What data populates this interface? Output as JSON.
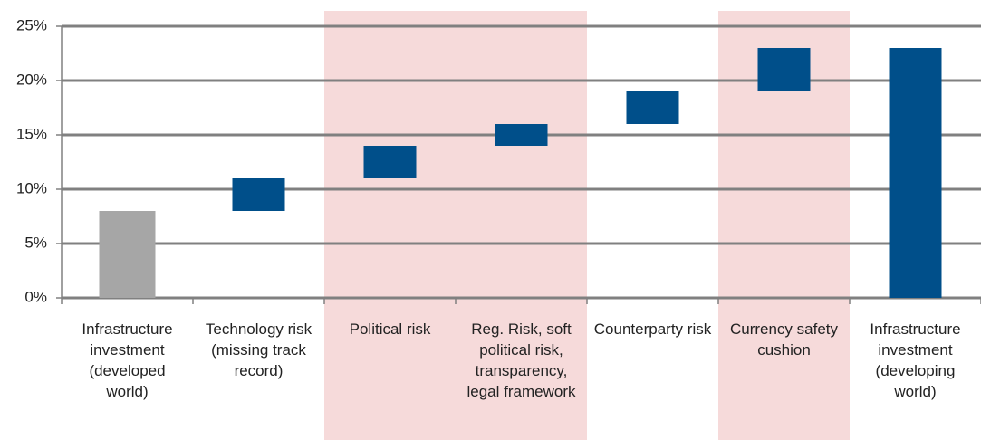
{
  "chart_data": {
    "type": "waterfall",
    "categories": [
      "Infrastructure investment (developed world)",
      "Technology risk (missing track record)",
      "Political risk",
      "Reg. Risk, soft political risk, transparency, legal framework",
      "Counterparty risk",
      "Currency safety cushion",
      "Infrastructure investment (developing world)"
    ],
    "values": [
      8,
      3,
      3,
      2,
      3,
      4,
      23
    ],
    "measure": [
      "absolute",
      "relative",
      "relative",
      "relative",
      "relative",
      "relative",
      "total"
    ],
    "colors": [
      "#a6a6a6",
      "#004f8a",
      "#004f8a",
      "#004f8a",
      "#004f8a",
      "#004f8a",
      "#004f8a"
    ],
    "highlight": [
      2,
      3,
      5
    ],
    "highlight_color": "#f6dada",
    "ylim": [
      0,
      25
    ],
    "yticks": [
      {
        "value": 0,
        "label": "0%"
      },
      {
        "value": 5,
        "label": "5%"
      },
      {
        "value": 10,
        "label": "10%"
      },
      {
        "value": 15,
        "label": "15%"
      },
      {
        "value": 20,
        "label": "20%"
      },
      {
        "value": 25,
        "label": "25%"
      }
    ],
    "grid": true
  }
}
